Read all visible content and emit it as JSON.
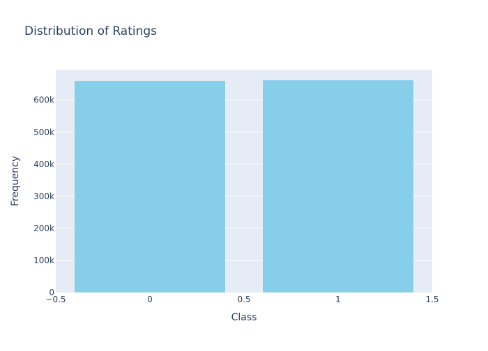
{
  "chart_data": {
    "type": "bar",
    "title": "Distribution of Ratings",
    "xlabel": "Class",
    "ylabel": "Frequency",
    "x": [
      0,
      1
    ],
    "values": [
      660000,
      662000
    ],
    "bar_width": 0.8,
    "xlim": [
      -0.5,
      1.5
    ],
    "ylim": [
      0,
      695000
    ],
    "x_ticks": [
      {
        "value": -0.5,
        "label": "−0.5"
      },
      {
        "value": 0,
        "label": "0"
      },
      {
        "value": 0.5,
        "label": "0.5"
      },
      {
        "value": 1,
        "label": "1"
      },
      {
        "value": 1.5,
        "label": "1.5"
      }
    ],
    "y_ticks": [
      {
        "value": 0,
        "label": "0"
      },
      {
        "value": 100000,
        "label": "100k"
      },
      {
        "value": 200000,
        "label": "200k"
      },
      {
        "value": 300000,
        "label": "300k"
      },
      {
        "value": 400000,
        "label": "400k"
      },
      {
        "value": 500000,
        "label": "500k"
      },
      {
        "value": 600000,
        "label": "600k"
      }
    ],
    "grid": true,
    "legend": false
  },
  "colors": {
    "bar": "#87ceeb",
    "plot_background": "#e5ecf6",
    "gridline": "#ffffff",
    "text": "#2a3f5f"
  }
}
